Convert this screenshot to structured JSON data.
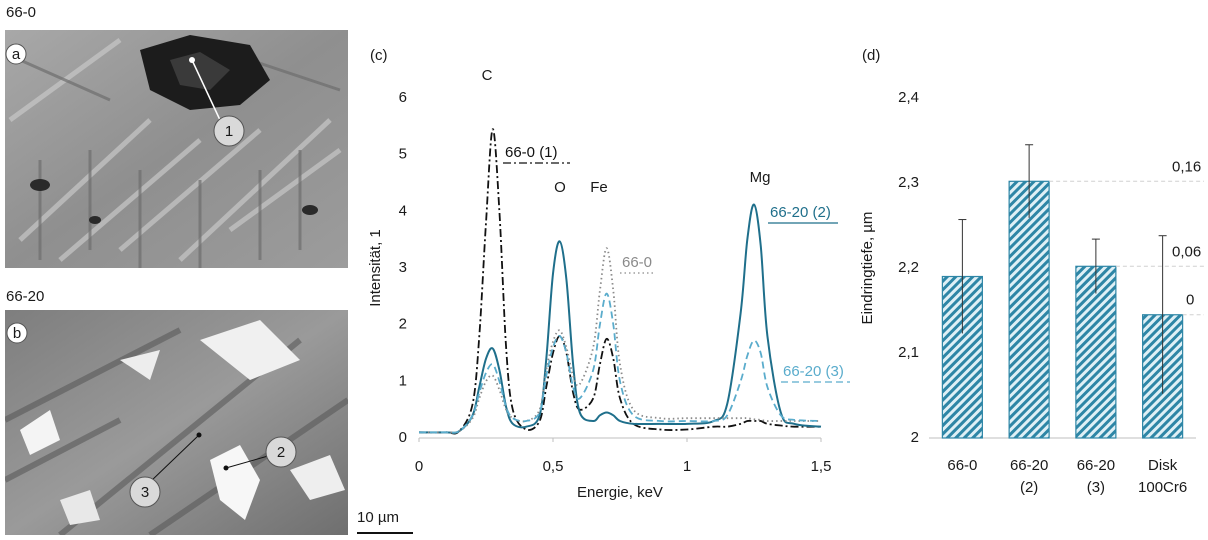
{
  "micrographs": {
    "top": {
      "label": "66-0",
      "panel": "a"
    },
    "bottom": {
      "label": "66-20",
      "panel": "b"
    },
    "markers": [
      "1",
      "2",
      "3"
    ],
    "scale_bar": "10 µm"
  },
  "chart_data": [
    {
      "type": "line",
      "panel": "(c)",
      "xlabel": "Energie, keV",
      "ylabel": "Intensität, 1",
      "peak_labels": [
        "C",
        "O",
        "Fe",
        "Mg"
      ],
      "x": [
        0,
        0.1,
        0.15,
        0.2,
        0.225,
        0.25,
        0.275,
        0.3,
        0.325,
        0.35,
        0.4,
        0.45,
        0.475,
        0.5,
        0.525,
        0.55,
        0.575,
        0.6,
        0.65,
        0.675,
        0.7,
        0.725,
        0.75,
        0.8,
        0.9,
        1.0,
        1.1,
        1.15,
        1.2,
        1.225,
        1.25,
        1.275,
        1.3,
        1.35,
        1.4,
        1.5
      ],
      "series": [
        {
          "name": "66-0 (1)",
          "color": "#111111",
          "style": "dash-dot",
          "values": [
            0.1,
            0.1,
            0.12,
            0.6,
            1.8,
            3.8,
            5.45,
            4.0,
            1.6,
            0.5,
            0.15,
            0.3,
            0.9,
            1.5,
            1.8,
            1.5,
            0.8,
            0.5,
            0.7,
            1.3,
            1.75,
            1.4,
            0.7,
            0.25,
            0.15,
            0.15,
            0.2,
            0.2,
            0.25,
            0.3,
            0.3,
            0.3,
            0.25,
            0.22,
            0.2,
            0.2
          ]
        },
        {
          "name": "66-20 (2)",
          "color": "#1f6f8b",
          "style": "solid",
          "values": [
            0.1,
            0.1,
            0.12,
            0.4,
            0.9,
            1.4,
            1.58,
            1.2,
            0.55,
            0.25,
            0.2,
            0.4,
            1.4,
            2.9,
            3.47,
            2.8,
            1.3,
            0.45,
            0.3,
            0.4,
            0.45,
            0.4,
            0.3,
            0.25,
            0.25,
            0.25,
            0.3,
            0.6,
            2.2,
            3.5,
            4.12,
            3.4,
            1.8,
            0.45,
            0.25,
            0.2
          ]
        },
        {
          "name": "66-0",
          "color": "#8a8a8a",
          "style": "dotted",
          "values": [
            0.1,
            0.1,
            0.12,
            0.35,
            0.7,
            1.0,
            1.1,
            0.85,
            0.5,
            0.35,
            0.3,
            0.5,
            1.2,
            1.7,
            1.9,
            1.6,
            1.1,
            0.95,
            1.6,
            2.6,
            3.35,
            2.6,
            1.3,
            0.5,
            0.35,
            0.35,
            0.35,
            0.35,
            0.35,
            0.35,
            0.33,
            0.32,
            0.3,
            0.3,
            0.3,
            0.3
          ]
        },
        {
          "name": "66-20 (3)",
          "color": "#5aaccc",
          "style": "dashed",
          "values": [
            0.1,
            0.1,
            0.12,
            0.4,
            0.8,
            1.15,
            1.3,
            1.0,
            0.55,
            0.35,
            0.3,
            0.45,
            1.1,
            1.6,
            1.8,
            1.5,
            0.9,
            0.7,
            1.2,
            2.0,
            2.55,
            2.0,
            1.0,
            0.4,
            0.3,
            0.3,
            0.3,
            0.4,
            1.0,
            1.45,
            1.72,
            1.5,
            0.9,
            0.4,
            0.32,
            0.3
          ]
        }
      ],
      "xlim": [
        0,
        1.5
      ],
      "xticks": [
        0,
        {
          "value": 0.5,
          "label": "0,5"
        },
        1,
        {
          "value": 1.5,
          "label": "1,5"
        }
      ],
      "ylim": [
        0,
        6
      ],
      "yticks": [
        0,
        1,
        2,
        3,
        4,
        5,
        6
      ]
    },
    {
      "type": "bar",
      "panel": "(d)",
      "ylabel": "Eindringtiefe, µm",
      "categories": [
        [
          "66-0"
        ],
        [
          "66-20",
          "(2)"
        ],
        [
          "66-20",
          "(3)"
        ],
        [
          "Disk",
          "100Cr6"
        ]
      ],
      "values": [
        2.19,
        2.302,
        2.202,
        2.145
      ],
      "errors": [
        0.067,
        0.043,
        0.032,
        0.093
      ],
      "color": "#2e86a6",
      "annotations": [
        {
          "value": 0.16,
          "label": "0,16"
        },
        {
          "value": 0.06,
          "label": "0,06"
        },
        0
      ],
      "ylim": [
        2,
        2.4
      ],
      "yticks": [
        2,
        {
          "value": 2.1,
          "label": "2,1"
        },
        {
          "value": 2.2,
          "label": "2,2"
        },
        {
          "value": 2.3,
          "label": "2,3"
        },
        {
          "value": 2.4,
          "label": "2,4"
        }
      ]
    }
  ]
}
